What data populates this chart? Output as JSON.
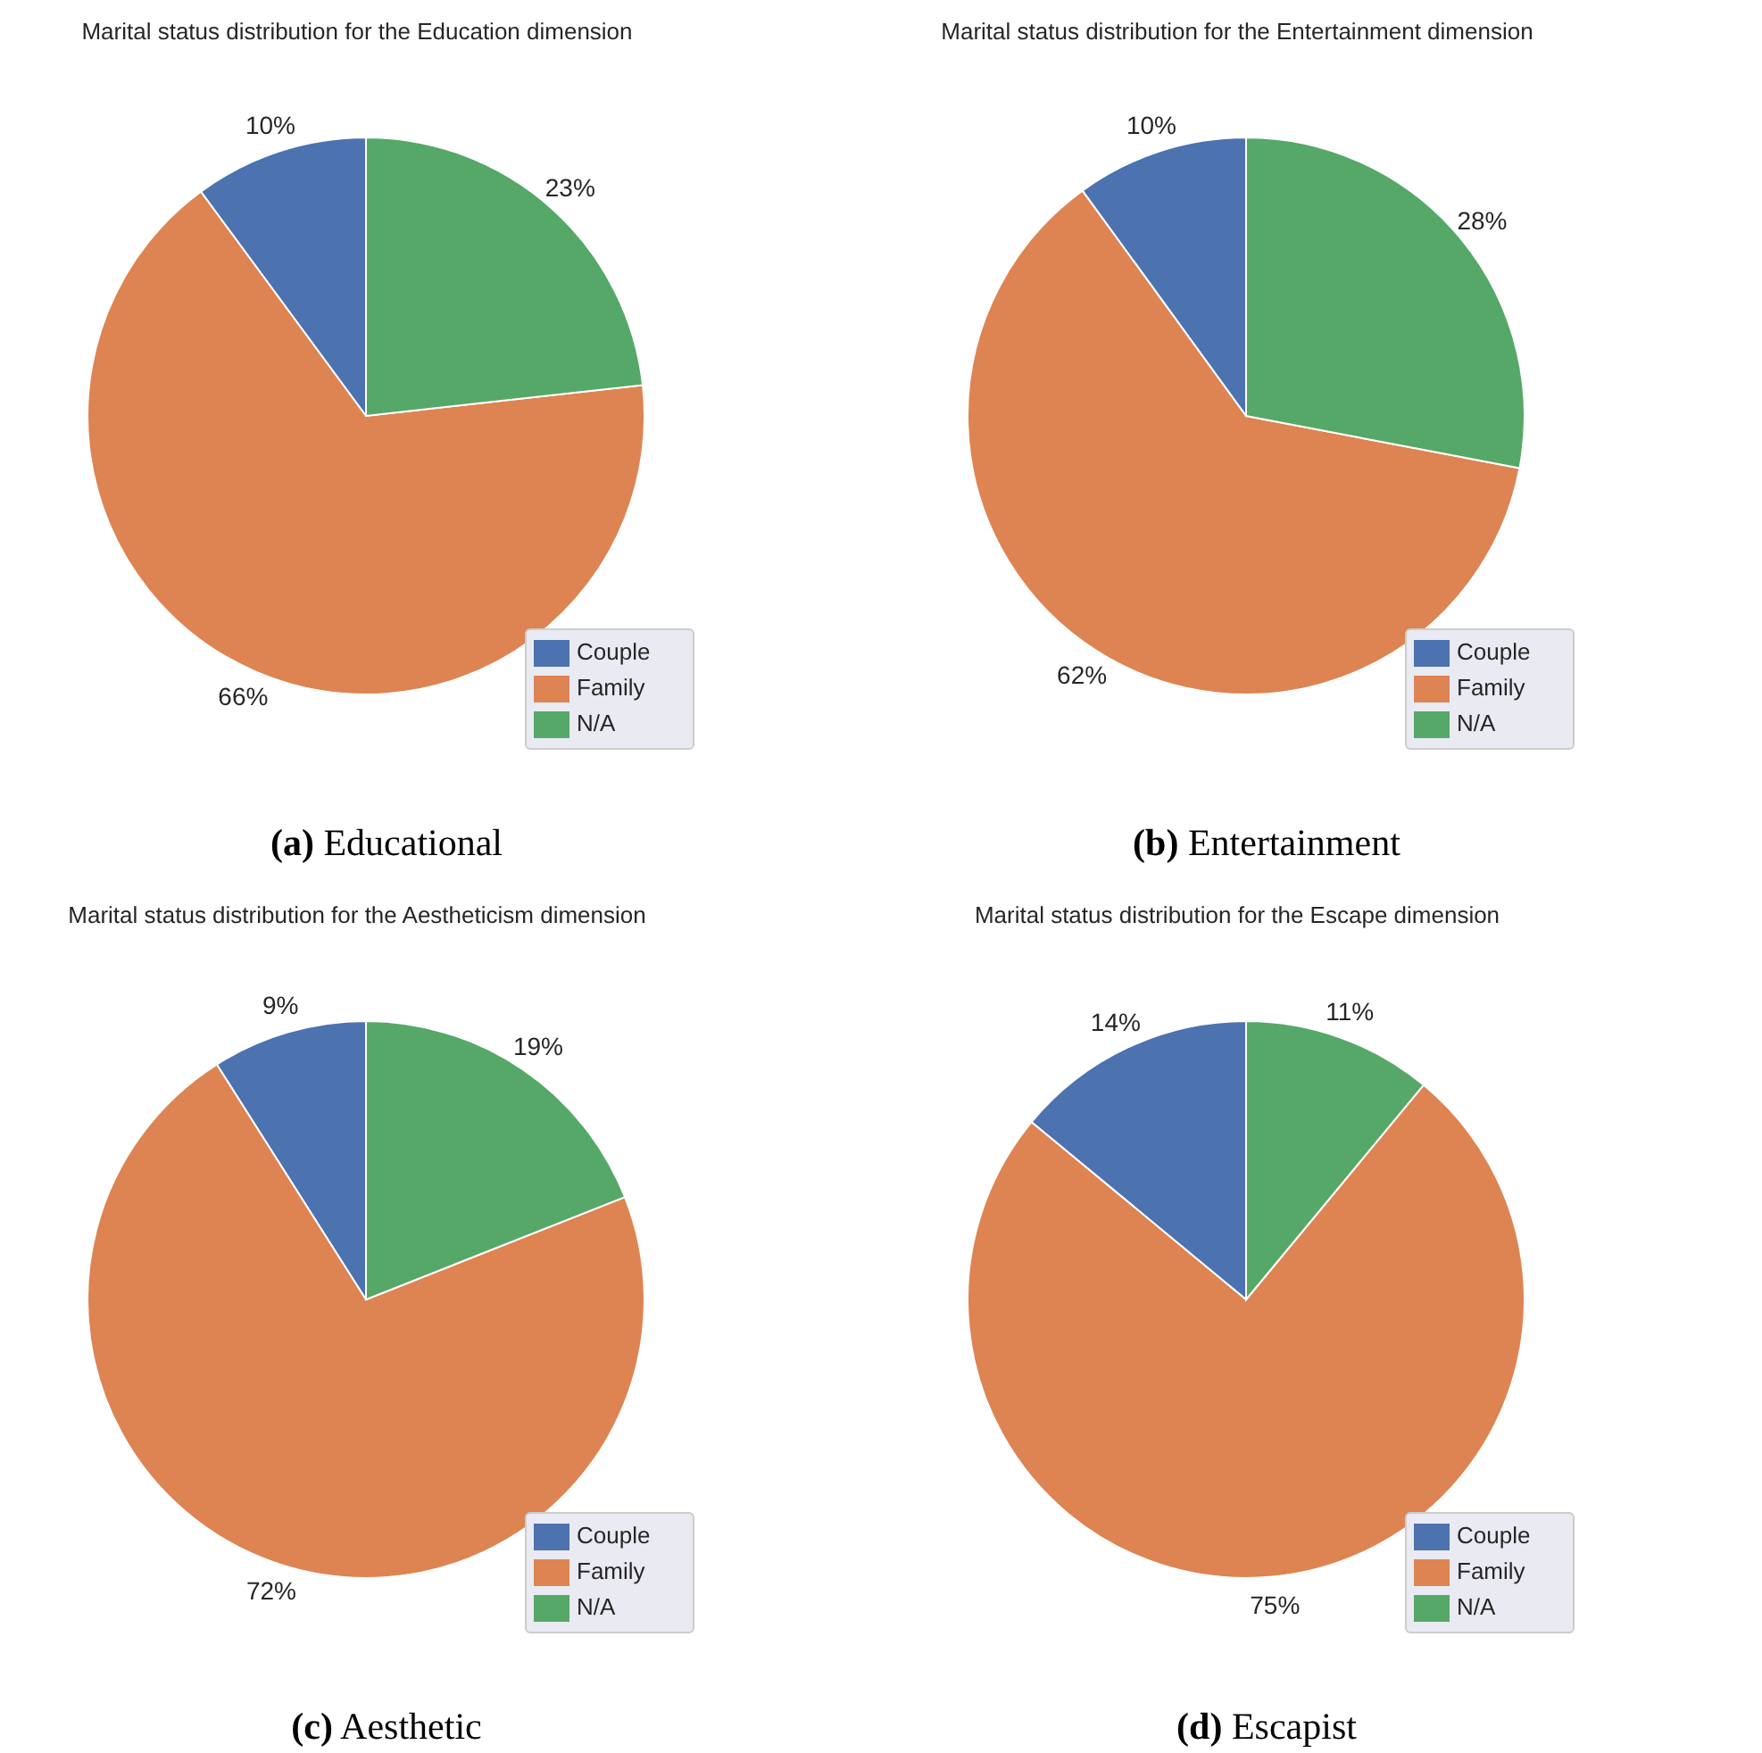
{
  "chart_data": [
    {
      "type": "pie",
      "title": "Marital status distribution for the Education dimension",
      "categories": [
        "Couple",
        "Family",
        "N/A"
      ],
      "values": [
        10,
        66,
        23
      ],
      "value_labels": [
        "10%",
        "66%",
        "23%"
      ],
      "colors": [
        "#4c72b0",
        "#dd8452",
        "#55a868"
      ],
      "legend": "bottom right",
      "annotations": [
        "(a) Educational"
      ]
    },
    {
      "type": "pie",
      "title": "Marital status distribution for the Entertainment dimension",
      "categories": [
        "Couple",
        "Family",
        "N/A"
      ],
      "values": [
        10,
        62,
        28
      ],
      "value_labels": [
        "10%",
        "62%",
        "28%"
      ],
      "colors": [
        "#4c72b0",
        "#dd8452",
        "#55a868"
      ],
      "legend": "bottom right",
      "annotations": [
        "(b) Entertainment"
      ]
    },
    {
      "type": "pie",
      "title": "Marital status distribution for the Aestheticism dimension",
      "categories": [
        "Couple",
        "Family",
        "N/A"
      ],
      "values": [
        9,
        72,
        19
      ],
      "value_labels": [
        "9%",
        "72%",
        "19%"
      ],
      "colors": [
        "#4c72b0",
        "#dd8452",
        "#55a868"
      ],
      "legend": "bottom right",
      "annotations": [
        "(c) Aesthetic"
      ]
    },
    {
      "type": "pie",
      "title": "Marital status distribution for the Escape dimension",
      "categories": [
        "Couple",
        "Family",
        "N/A"
      ],
      "values": [
        14,
        75,
        11
      ],
      "value_labels": [
        "14%",
        "75%",
        "11%"
      ],
      "colors": [
        "#4c72b0",
        "#dd8452",
        "#55a868"
      ],
      "legend": "bottom right",
      "annotations": [
        "(d) Escapist"
      ]
    }
  ]
}
